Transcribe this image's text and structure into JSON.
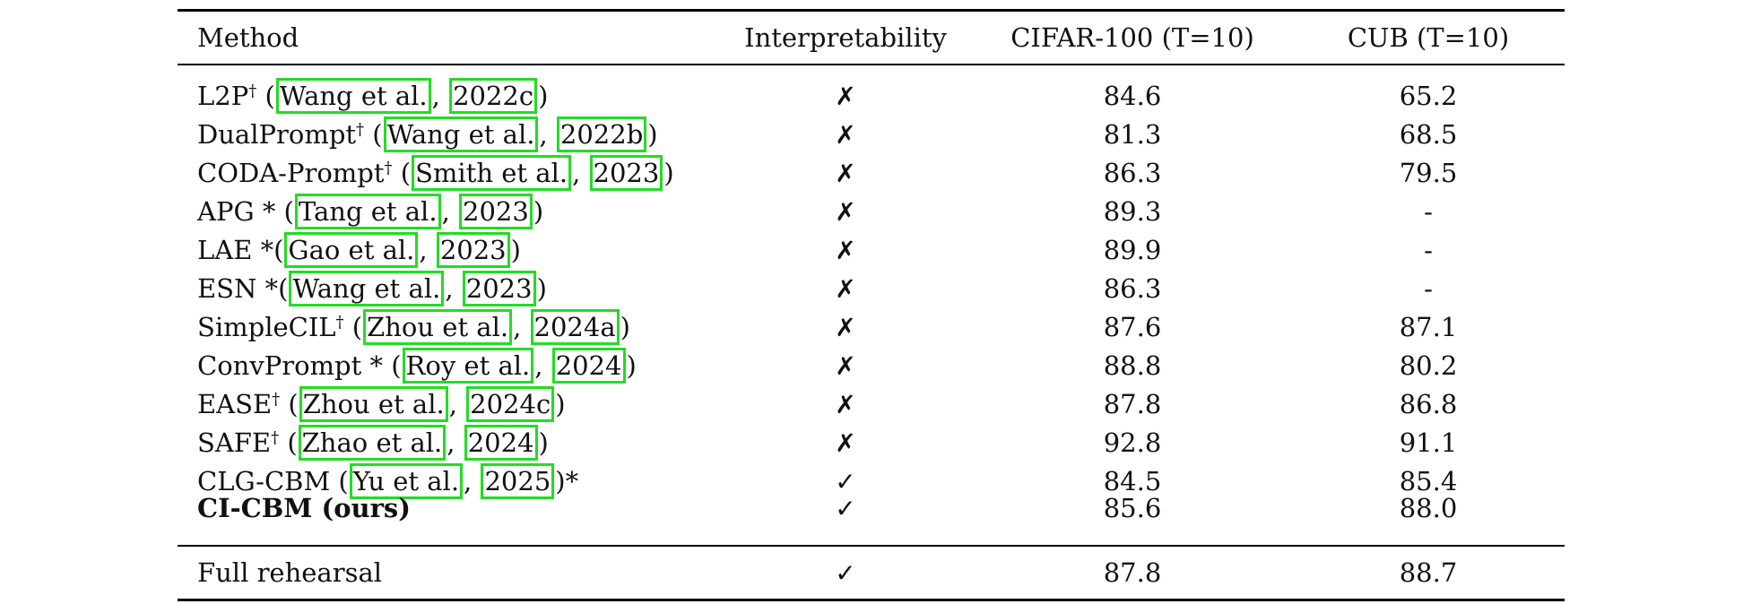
{
  "header": {
    "method": "Method",
    "interpretability": "Interpretability",
    "cifar": "CIFAR-100 (T=10)",
    "cub": "CUB (T=10)"
  },
  "icons": {
    "cross": "✗",
    "check": "✓"
  },
  "rows": [
    {
      "name": "L2P",
      "mark": "†",
      "open": " (",
      "author": "Wang et al.",
      "sep": ", ",
      "year": "2022c",
      "close": ")",
      "interp": "✗",
      "cifar": "84.6",
      "cub": "65.2"
    },
    {
      "name": "DualPrompt",
      "mark": "†",
      "open": " (",
      "author": "Wang et al.",
      "sep": ", ",
      "year": "2022b",
      "close": ")",
      "interp": "✗",
      "cifar": "81.3",
      "cub": "68.5"
    },
    {
      "name": "CODA-Prompt",
      "mark": "†",
      "open": " (",
      "author": "Smith et al.",
      "sep": ", ",
      "year": "2023",
      "close": ")",
      "interp": "✗",
      "cifar": "86.3",
      "cub": "79.5"
    },
    {
      "name": "APG *",
      "mark": "",
      "open": " (",
      "author": "Tang et al.",
      "sep": ", ",
      "year": "2023",
      "close": ")",
      "interp": "✗",
      "cifar": "89.3",
      "cub": "-"
    },
    {
      "name": "LAE *",
      "mark": "",
      "open": "(",
      "author": "Gao et al.",
      "sep": ", ",
      "year": "2023",
      "close": ")",
      "interp": "✗",
      "cifar": "89.9",
      "cub": "-"
    },
    {
      "name": "ESN *",
      "mark": "",
      "open": "(",
      "author": "Wang et al.",
      "sep": ", ",
      "year": "2023",
      "close": ")",
      "interp": "✗",
      "cifar": "86.3",
      "cub": "-"
    },
    {
      "name": "SimpleCIL",
      "mark": "†",
      "open": " (",
      "author": "Zhou et al.",
      "sep": ", ",
      "year": "2024a",
      "close": ")",
      "interp": "✗",
      "cifar": "87.6",
      "cub": "87.1"
    },
    {
      "name": "ConvPrompt *",
      "mark": "",
      "open": " (",
      "author": "Roy et al.",
      "sep": ", ",
      "year": "2024",
      "close": ")",
      "interp": "✗",
      "cifar": "88.8",
      "cub": "80.2"
    },
    {
      "name": "EASE",
      "mark": "†",
      "open": " (",
      "author": "Zhou et al.",
      "sep": ", ",
      "year": "2024c",
      "close": ")",
      "interp": "✗",
      "cifar": "87.8",
      "cub": "86.8"
    },
    {
      "name": "SAFE",
      "mark": "†",
      "open": " (",
      "author": "Zhao et al.",
      "sep": ", ",
      "year": "2024",
      "close": ")",
      "interp": "✗",
      "cifar": "92.8",
      "cub": "91.1"
    },
    {
      "name": "CLG-CBM",
      "mark": "",
      "open": " (",
      "author": "Yu et al.",
      "sep": ", ",
      "year": "2025",
      "close": ")*",
      "interp": "✓",
      "cifar": "84.5",
      "cub": "85.4"
    }
  ],
  "ours": {
    "name": "CI-CBM (ours)",
    "interp": "✓",
    "cifar": "85.6",
    "cub": "88.0"
  },
  "rehearsal": {
    "name": "Full rehearsal",
    "interp": "✓",
    "cifar": "87.8",
    "cub": "88.7"
  }
}
